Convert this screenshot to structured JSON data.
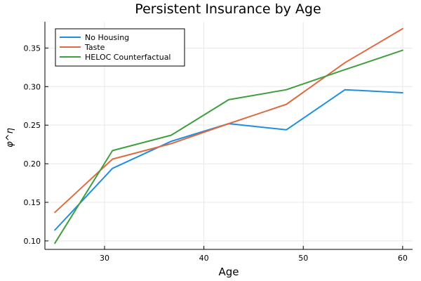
{
  "chart_data": {
    "type": "line",
    "title": "Persistent Insurance by Age",
    "xlabel": "Age",
    "ylabel": "φ^η",
    "xlim": [
      24,
      61
    ],
    "ylim": [
      0.089,
      0.384
    ],
    "xticks": [
      30,
      40,
      50,
      60
    ],
    "yticks": [
      0.1,
      0.15,
      0.2,
      0.25,
      0.3,
      0.35
    ],
    "grid": true,
    "legend_position": "top-left",
    "x": [
      25,
      30.8,
      36.7,
      42.5,
      48.3,
      54.2,
      60
    ],
    "series": [
      {
        "name": "No Housing",
        "color": "#1e8fe0",
        "values": [
          0.114,
          0.194,
          0.229,
          0.252,
          0.244,
          0.296,
          0.292
        ]
      },
      {
        "name": "Taste",
        "color": "#e06a3f",
        "values": [
          0.137,
          0.206,
          0.226,
          0.252,
          0.277,
          0.331,
          0.375
        ]
      },
      {
        "name": "HELOC Counterfactual",
        "color": "#3f9f3f",
        "values": [
          0.097,
          0.217,
          0.237,
          0.283,
          0.296,
          0.322,
          0.347
        ]
      }
    ]
  }
}
